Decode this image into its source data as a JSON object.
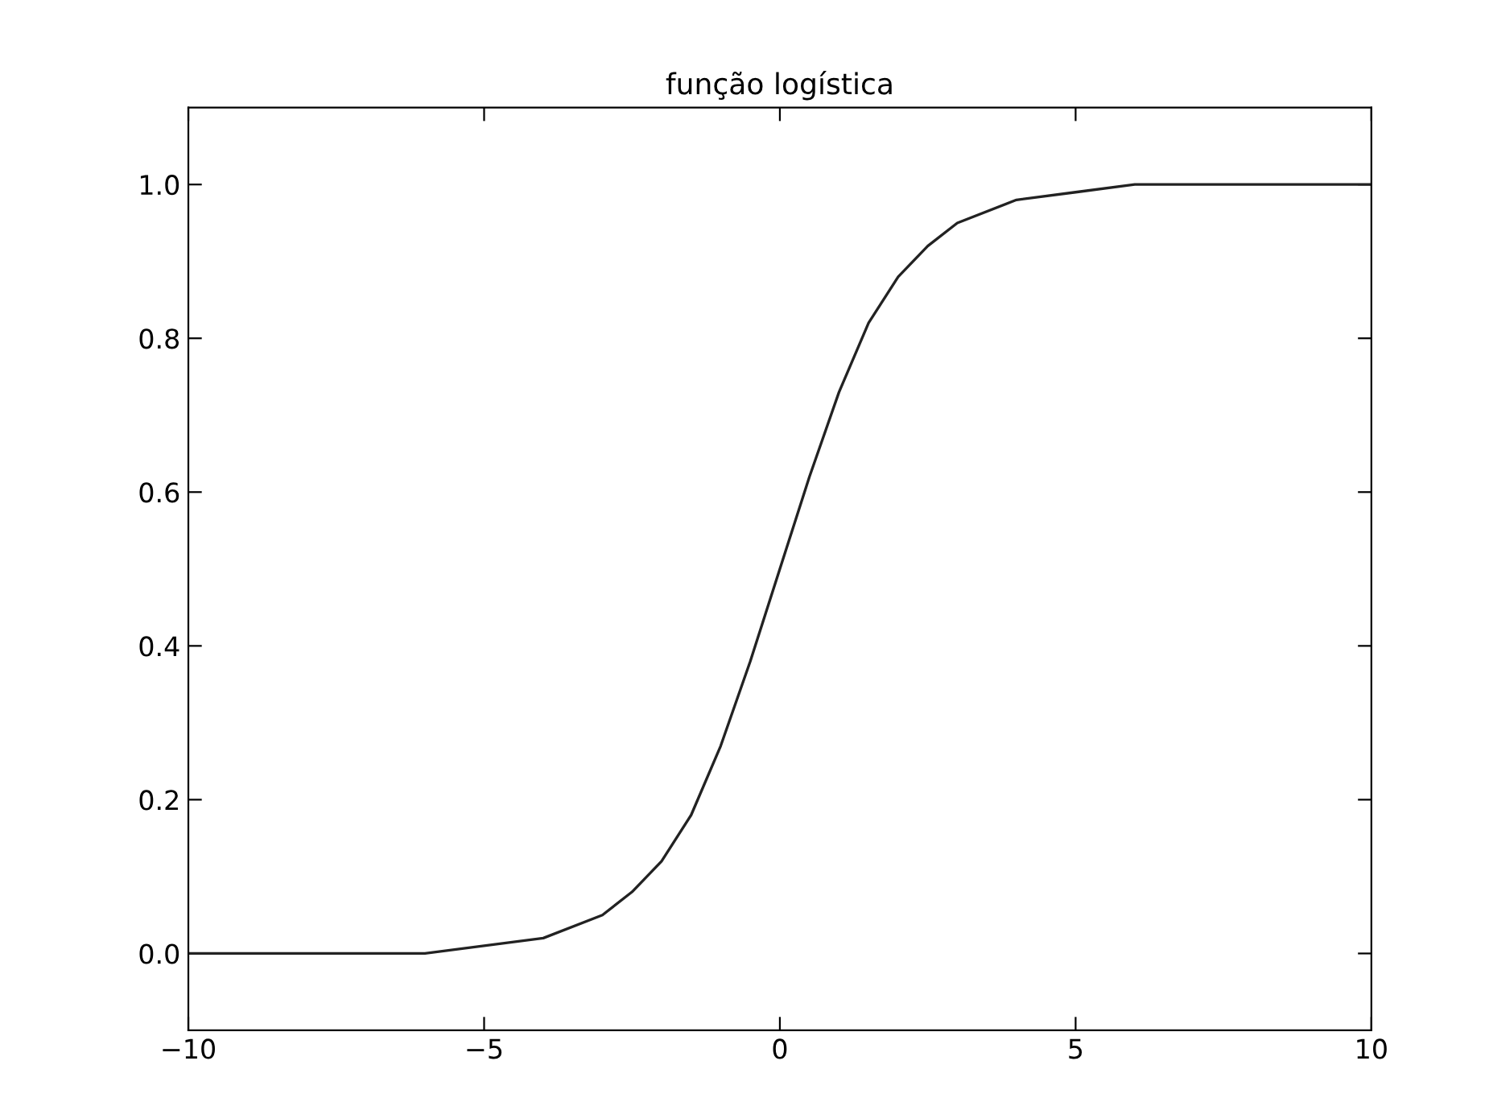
{
  "chart_data": {
    "type": "line",
    "title": "função logística",
    "x": [
      -10,
      -8,
      -6,
      -5,
      -4,
      -3,
      -2.5,
      -2,
      -1.5,
      -1,
      -0.5,
      0,
      0.5,
      1,
      1.5,
      2,
      2.5,
      3,
      4,
      5,
      6,
      8,
      10
    ],
    "series": [
      {
        "color": "#222222",
        "values": [
          0.0,
          0.0,
          0.0,
          0.01,
          0.02,
          0.05,
          0.08,
          0.12,
          0.18,
          0.27,
          0.38,
          0.5,
          0.62,
          0.73,
          0.82,
          0.88,
          0.92,
          0.95,
          0.98,
          0.99,
          1.0,
          1.0,
          1.0
        ]
      }
    ],
    "xlim": [
      -10,
      10
    ],
    "ylim": [
      -0.1,
      1.1
    ],
    "xticks": [
      {
        "value": -10,
        "label": "−10"
      },
      {
        "value": -5,
        "label": "−5"
      },
      0,
      5,
      10
    ],
    "yticks": [
      {
        "value": 0.0,
        "label": "0.0"
      },
      {
        "value": 0.2,
        "label": "0.2"
      },
      {
        "value": 0.4,
        "label": "0.4"
      },
      {
        "value": 0.6,
        "label": "0.6"
      },
      {
        "value": 0.8,
        "label": "0.8"
      },
      {
        "value": 1.0,
        "label": "1.0"
      }
    ],
    "grid": false,
    "legend": false
  }
}
